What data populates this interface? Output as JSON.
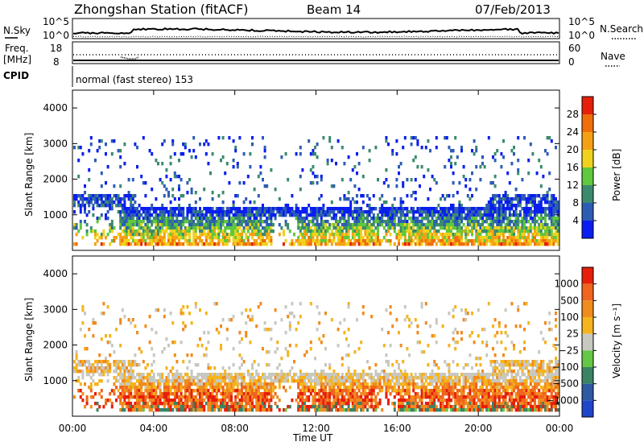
{
  "header": {
    "station": "Zhongshan Station (fitACF)",
    "beam": "Beam 14",
    "date": "07/Feb/2013"
  },
  "top_panels": {
    "nsky_label": "N.Sky",
    "nsky_ticks": [
      "10^5",
      "10^0"
    ],
    "nsearch_label": "N.Search",
    "nsearch_ticks": [
      "10^5",
      "10^0"
    ],
    "freq_label_line1": "Freq.",
    "freq_label_line2": "[MHz]",
    "freq_ticks": [
      "18",
      "8"
    ],
    "nave_label": "Nave",
    "nave_ticks": [
      "60",
      "0"
    ],
    "cpid_label": "CPID",
    "cpid_text": "normal (fast stereo) 153"
  },
  "chart_data": [
    {
      "type": "heatmap",
      "name": "power",
      "ylabel": "Slant Range [km]",
      "yticks": [
        "1000",
        "2000",
        "3000",
        "4000"
      ],
      "ylim": [
        0,
        4500
      ],
      "xlim": [
        0,
        24
      ],
      "colorbar": {
        "label": "Power [dB]",
        "ticks": [
          "4",
          "8",
          "12",
          "16",
          "20",
          "24",
          "28"
        ],
        "colors": [
          "#0a1ef0",
          "#2d5cb4",
          "#3c8a6e",
          "#5fc83c",
          "#f0d21e",
          "#f5a014",
          "#f06e0a",
          "#e61e0a"
        ]
      }
    },
    {
      "type": "heatmap",
      "name": "velocity",
      "ylabel": "Slant Range [km]",
      "yticks": [
        "1000",
        "2000",
        "3000",
        "4000"
      ],
      "ylim": [
        0,
        4500
      ],
      "xlim": [
        0,
        24
      ],
      "xticks": [
        "00:00",
        "04:00",
        "08:00",
        "12:00",
        "16:00",
        "20:00",
        "00:00"
      ],
      "xlabel": "Time UT",
      "colorbar": {
        "label": "Velocity [m s⁻¹]",
        "ticks": [
          "1000",
          "500",
          "100",
          "25",
          "−25",
          "−100",
          "−500",
          "−1000"
        ],
        "colors": [
          "#1e46c8",
          "#2d5aa0",
          "#3c8264",
          "#64c846",
          "#c8c8c0",
          "#f5b41e",
          "#f08c1e",
          "#f0641e",
          "#e61e0a"
        ]
      }
    }
  ]
}
